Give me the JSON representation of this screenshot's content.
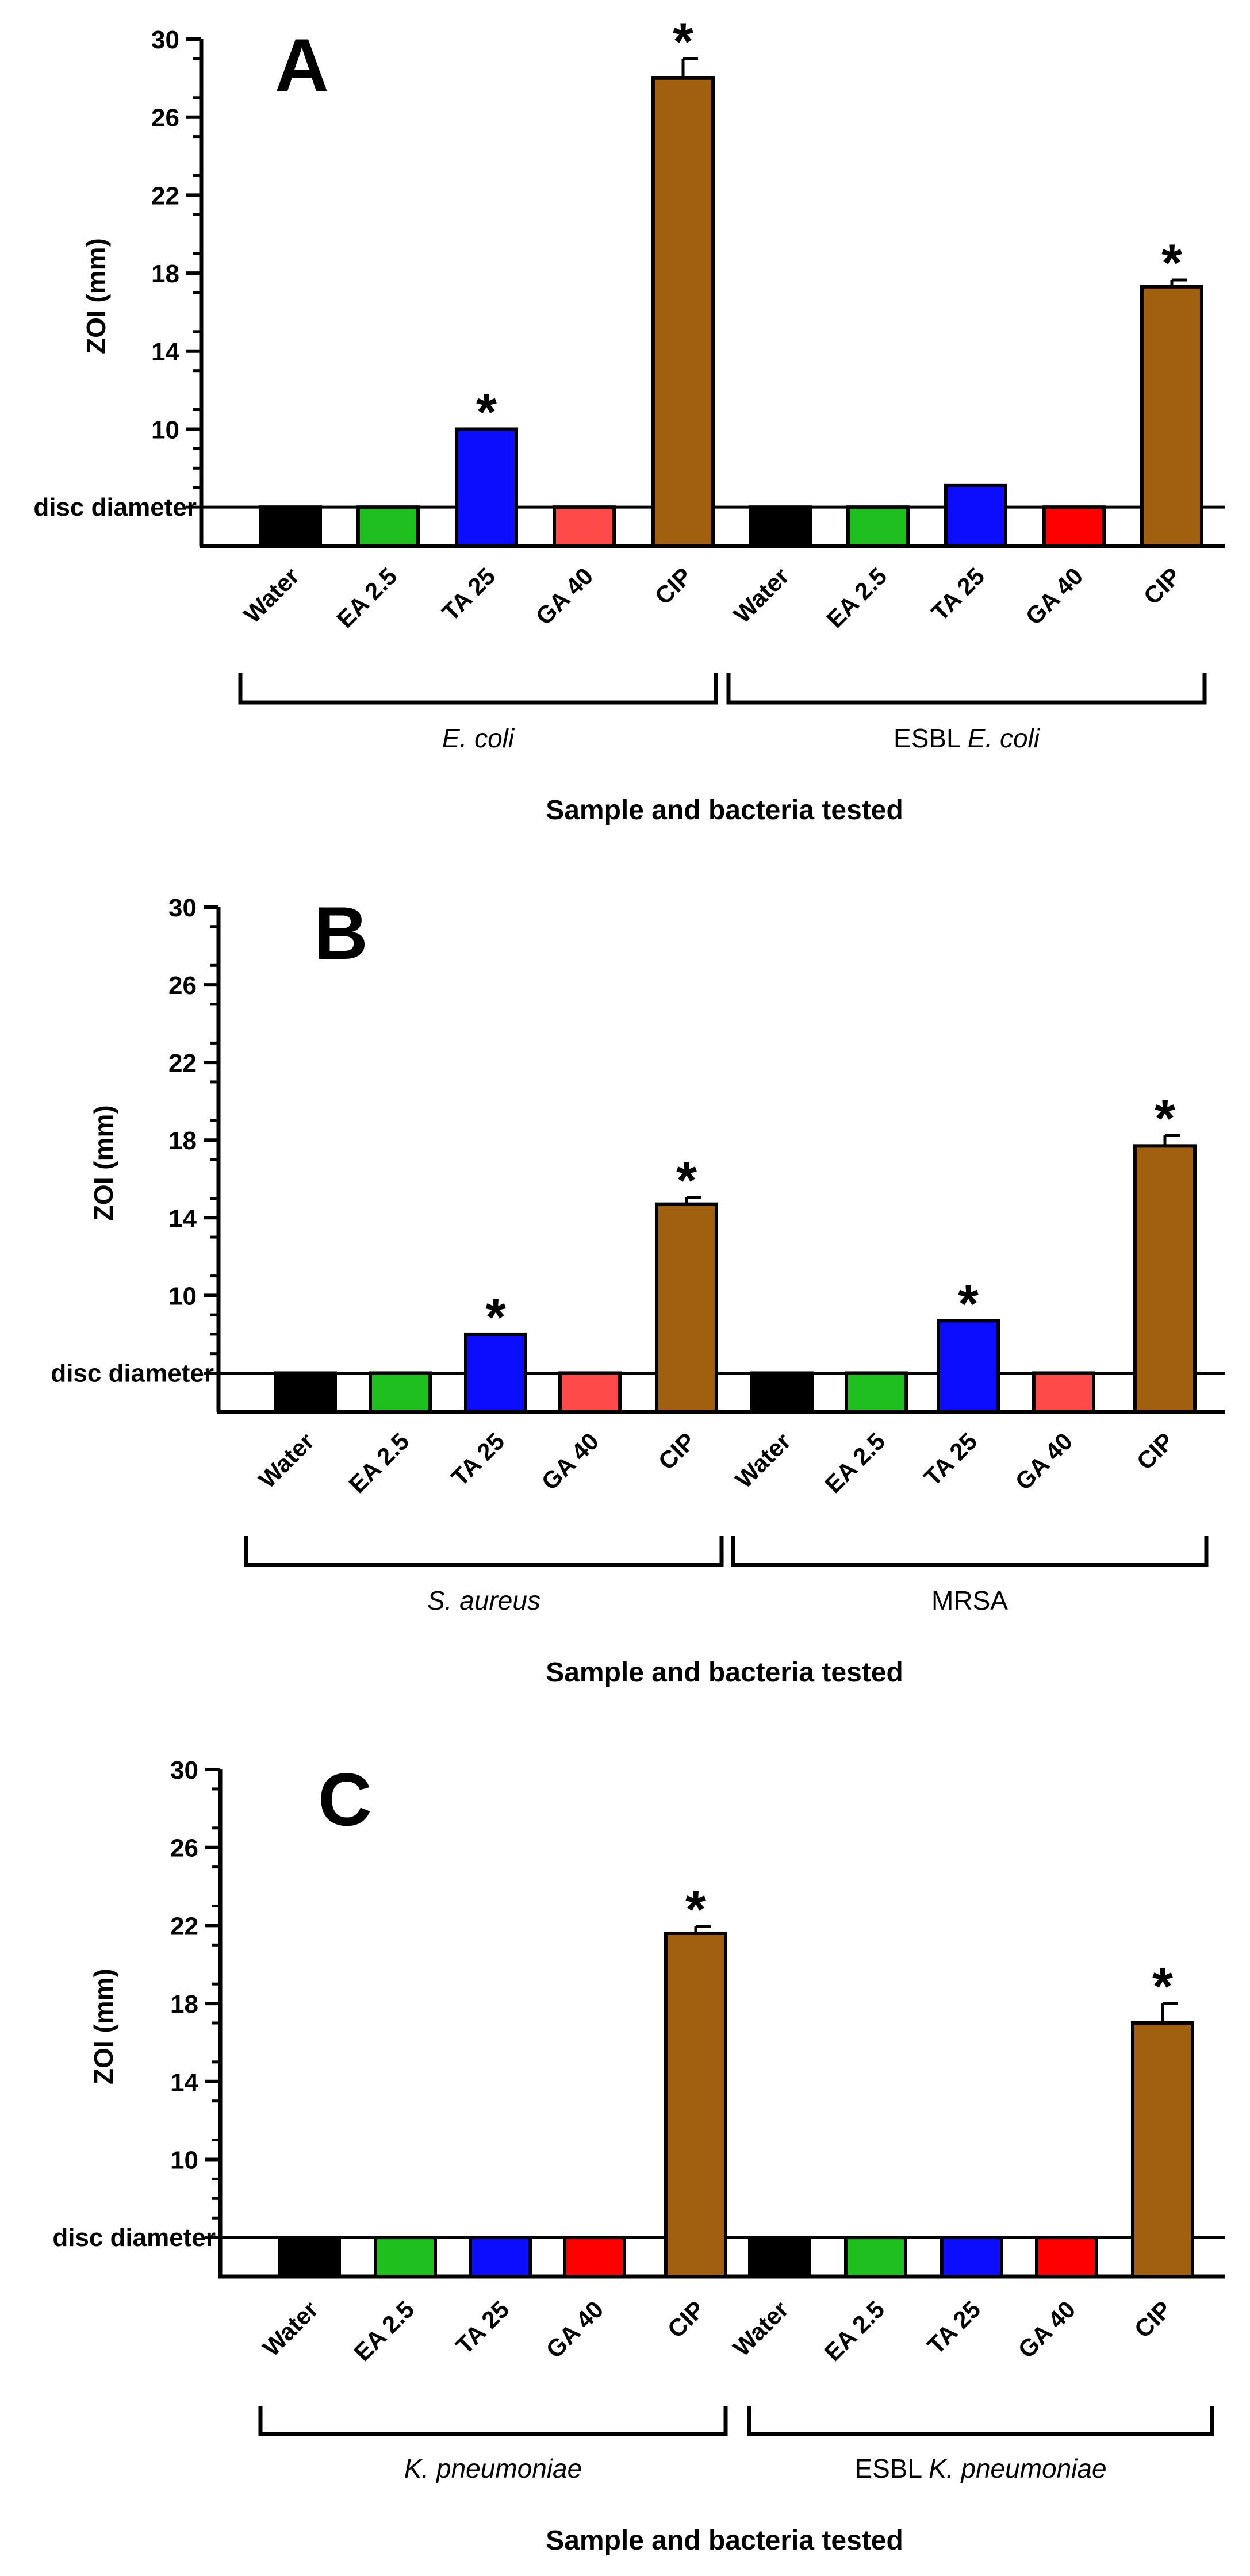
{
  "colors": {
    "water": "#000000",
    "ea": "#1fbf1f",
    "ta": "#0c0cff",
    "ga_light": "#ff4a4a",
    "ga_red": "#ff0000",
    "cip": "#a0600f",
    "axis": "#000000"
  },
  "shared": {
    "ylabel": "ZOI (mm)",
    "xlabel": "Sample and bacteria tested",
    "disc_label": "disc diameter",
    "categories": [
      "Water",
      "EA 2.5",
      "TA 25",
      "GA 40",
      "CIP"
    ],
    "yticks": [
      "30",
      "26",
      "22",
      "18",
      "14",
      "10"
    ],
    "star": "*"
  },
  "chart_data": [
    {
      "type": "bar",
      "panel_label": "A",
      "title": "",
      "xlabel": "Sample and bacteria tested",
      "ylabel": "ZOI (mm)",
      "ylim": [
        4,
        30
      ],
      "disc_diameter": 6,
      "categories": [
        "Water",
        "EA 2.5",
        "TA 25",
        "GA 40",
        "CIP"
      ],
      "series": [
        {
          "name": "E. coli",
          "group_prefix": "",
          "group_italic": "E. coli",
          "values": [
            6,
            6,
            10,
            6,
            28
          ],
          "errors": [
            0,
            0,
            0,
            0,
            1
          ],
          "significant": [
            false,
            false,
            true,
            false,
            true
          ],
          "ga_color": "ga_light"
        },
        {
          "name": "ESBL E. coli",
          "group_prefix": "ESBL ",
          "group_italic": "E. coli",
          "values": [
            6,
            6,
            7.1,
            6,
            17.3
          ],
          "errors": [
            0,
            0,
            0,
            0,
            0.35
          ],
          "significant": [
            false,
            false,
            false,
            false,
            true
          ],
          "ga_color": "ga_red"
        }
      ]
    },
    {
      "type": "bar",
      "panel_label": "B",
      "title": "",
      "xlabel": "Sample and bacteria tested",
      "ylabel": "ZOI (mm)",
      "ylim": [
        4,
        30
      ],
      "disc_diameter": 6,
      "categories": [
        "Water",
        "EA 2.5",
        "TA 25",
        "GA 40",
        "CIP"
      ],
      "series": [
        {
          "name": "S. aureus",
          "group_prefix": "",
          "group_italic": "S. aureus",
          "values": [
            6,
            6,
            8,
            6,
            14.7
          ],
          "errors": [
            0,
            0,
            0,
            0,
            0.35
          ],
          "significant": [
            false,
            false,
            true,
            false,
            true
          ],
          "ga_color": "ga_light"
        },
        {
          "name": "MRSA",
          "group_prefix": "MRSA",
          "group_italic": "",
          "values": [
            6,
            6,
            8.7,
            6,
            17.7
          ],
          "errors": [
            0,
            0,
            0,
            0.7,
            0.55
          ],
          "significant": [
            false,
            false,
            true,
            false,
            true
          ],
          "ga_color": "ga_light"
        }
      ]
    },
    {
      "type": "bar",
      "panel_label": "C",
      "title": "",
      "xlabel": "Sample and bacteria tested",
      "ylabel": "ZOI (mm)",
      "ylim": [
        4,
        30
      ],
      "disc_diameter": 6,
      "categories": [
        "Water",
        "EA 2.5",
        "TA 25",
        "GA 40",
        "CIP"
      ],
      "series": [
        {
          "name": "K. pneumoniae",
          "group_prefix": "",
          "group_italic": "K. pneumoniae",
          "values": [
            6,
            6,
            6,
            6,
            21.6
          ],
          "errors": [
            0,
            0,
            0,
            0,
            0.35
          ],
          "significant": [
            false,
            false,
            false,
            false,
            true
          ],
          "ga_color": "ga_red"
        },
        {
          "name": "ESBL K. pneumoniae",
          "group_prefix": "ESBL ",
          "group_italic": "K. pneumoniae",
          "values": [
            6,
            6,
            6,
            6,
            17
          ],
          "errors": [
            0,
            0,
            0,
            0,
            1
          ],
          "significant": [
            false,
            false,
            false,
            false,
            true
          ],
          "ga_color": "ga_red"
        }
      ]
    }
  ]
}
